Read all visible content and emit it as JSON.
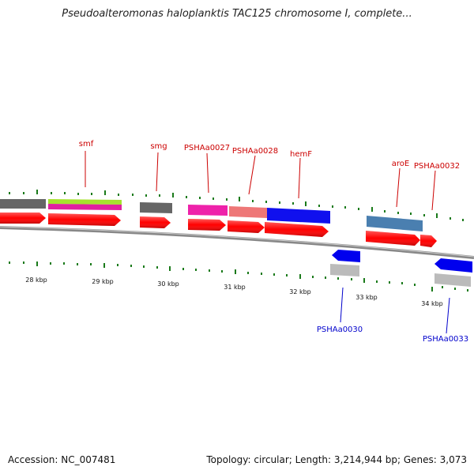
{
  "title": "Pseudoalteromonas haloplanktis TAC125 chromosome I, complete...",
  "accession_label": "Accession:",
  "accession": "NC_007481",
  "topology_text": "Topology: circular; Length: 3,214,944 bp; Genes: 3,073",
  "colors": {
    "backbone": "#888888",
    "cds": "#ff0000",
    "gene_label_forward": "#cc0000",
    "gene_label_reverse": "#0000cc",
    "tick": "#1a7a1a"
  },
  "scale_labels": [
    "28 kbp",
    "29 kbp",
    "30 kbp",
    "31 kbp",
    "32 kbp",
    "33 kbp",
    "34 kbp"
  ],
  "forward_labels": [
    "smf",
    "smg",
    "PSHAa0027",
    "PSHAa0028",
    "hemF",
    "aroE",
    "PSHAa0032"
  ],
  "reverse_labels": [
    "PSHAa0030",
    "PSHAa0033"
  ]
}
